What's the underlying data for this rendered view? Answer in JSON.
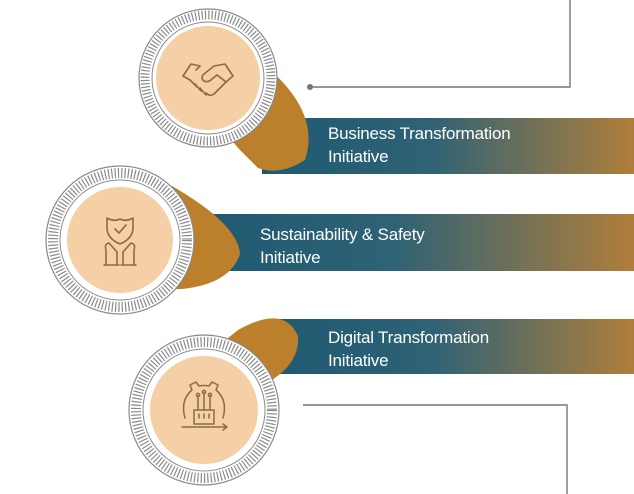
{
  "initiatives": [
    {
      "title_line1": "Business Transformation",
      "title_line2": "Initiative",
      "icon": "handshake-icon"
    },
    {
      "title_line1": "Sustainability & Safety",
      "title_line2": "Initiative",
      "icon": "shield-hands-icon"
    },
    {
      "title_line1": "Digital Transformation",
      "title_line2": "Initiative",
      "icon": "digital-gear-icon"
    }
  ],
  "colors": {
    "banner_start": "#1e5a72",
    "banner_end": "#b07e3b",
    "funnel": "#bc7f2b",
    "circle_fill": "#f5cfa5",
    "ring": "#7d7d7d",
    "icon_stroke": "#8c6a48",
    "connector": "#6e7780"
  }
}
